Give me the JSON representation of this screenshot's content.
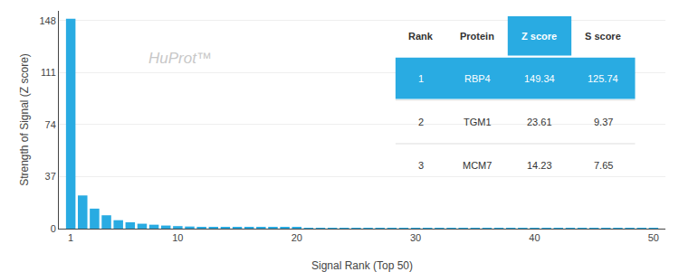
{
  "chart_data": {
    "type": "bar",
    "xlabel": "Signal Rank (Top 50)",
    "ylabel": "Strength of Signal (Z score)",
    "x": [
      1,
      2,
      3,
      4,
      5,
      6,
      7,
      8,
      9,
      10,
      11,
      12,
      13,
      14,
      15,
      16,
      17,
      18,
      19,
      20,
      21,
      22,
      23,
      24,
      25,
      26,
      27,
      28,
      29,
      30,
      31,
      32,
      33,
      34,
      35,
      36,
      37,
      38,
      39,
      40,
      41,
      42,
      43,
      44,
      45,
      46,
      47,
      48,
      49,
      50
    ],
    "values": [
      149.34,
      23.61,
      14.23,
      9.5,
      6.0,
      4.5,
      3.5,
      2.8,
      2.2,
      1.8,
      1.5,
      1.3,
      1.1,
      1.0,
      0.9,
      0.85,
      0.8,
      0.75,
      0.7,
      0.65,
      0.6,
      0.58,
      0.55,
      0.52,
      0.5,
      0.48,
      0.46,
      0.44,
      0.42,
      0.4,
      0.38,
      0.36,
      0.35,
      0.34,
      0.33,
      0.32,
      0.31,
      0.3,
      0.29,
      0.28,
      0.27,
      0.26,
      0.25,
      0.24,
      0.23,
      0.22,
      0.21,
      0.2,
      0.19,
      0.18
    ],
    "color": "#29ABE2",
    "xlim": [
      0.0,
      51
    ],
    "ylim": [
      0,
      155
    ],
    "xticks": [
      1,
      10,
      20,
      30,
      40,
      50
    ],
    "yticks": [
      0,
      37,
      74,
      111,
      148
    ],
    "grid": true,
    "annotations": [
      "HuProt™"
    ],
    "table": {
      "header": [
        "Rank",
        "Protein",
        "Z score",
        "S score"
      ],
      "rows": [
        [
          "1",
          "RBP4",
          "149.34",
          "125.74"
        ],
        [
          "2",
          "TGM1",
          "23.61",
          "9.37"
        ],
        [
          "3",
          "MCM7",
          "14.23",
          "7.65"
        ]
      ]
    }
  }
}
